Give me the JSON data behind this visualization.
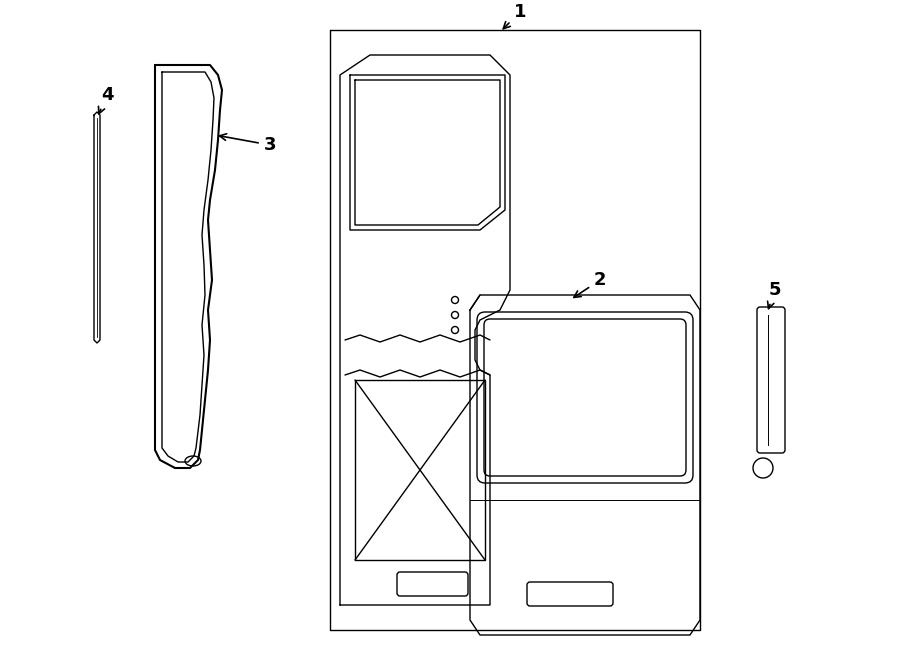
{
  "bg_color": "#ffffff",
  "line_color": "#000000",
  "lw": 1.0,
  "fig_width": 9.0,
  "fig_height": 6.61,
  "label_fontsize": 13
}
